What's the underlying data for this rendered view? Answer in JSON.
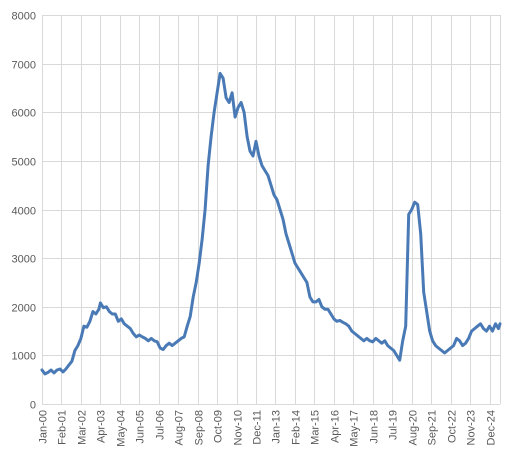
{
  "chart_data": {
    "type": "line",
    "title": "",
    "xlabel": "",
    "ylabel": "",
    "ylim": [
      0,
      8000
    ],
    "yticks": [
      0,
      1000,
      2000,
      3000,
      4000,
      5000,
      6000,
      7000,
      8000
    ],
    "x_range": [
      "2000-01",
      "2025-07"
    ],
    "grid": "on",
    "legend": "none",
    "colors": {
      "series": "#4a7ab6",
      "grid": "#d9d9d9",
      "text": "#595959"
    },
    "xtick_labels": [
      "Jan-00",
      "Feb-01",
      "Mar-02",
      "Apr-03",
      "May-04",
      "Jun-05",
      "Jul-06",
      "Aug-07",
      "Sep-08",
      "Oct-09",
      "Nov-10",
      "Dec-11",
      "Jan-13",
      "Feb-14",
      "Mar-15",
      "Apr-16",
      "May-17",
      "Jun-18",
      "Jul-19",
      "Aug-20",
      "Sep-21",
      "Oct-22",
      "Nov-23",
      "Dec-24"
    ],
    "series": [
      {
        "points": [
          [
            "2000-01",
            700
          ],
          [
            "2000-03",
            620
          ],
          [
            "2000-05",
            650
          ],
          [
            "2000-07",
            700
          ],
          [
            "2000-09",
            640
          ],
          [
            "2000-11",
            700
          ],
          [
            "2001-01",
            720
          ],
          [
            "2001-03",
            660
          ],
          [
            "2001-05",
            720
          ],
          [
            "2001-07",
            800
          ],
          [
            "2001-09",
            880
          ],
          [
            "2001-11",
            1100
          ],
          [
            "2002-01",
            1200
          ],
          [
            "2002-03",
            1350
          ],
          [
            "2002-05",
            1600
          ],
          [
            "2002-07",
            1580
          ],
          [
            "2002-09",
            1700
          ],
          [
            "2002-11",
            1900
          ],
          [
            "2003-01",
            1850
          ],
          [
            "2003-03",
            1950
          ],
          [
            "2003-04",
            2080
          ],
          [
            "2003-06",
            1980
          ],
          [
            "2003-08",
            2000
          ],
          [
            "2003-10",
            1900
          ],
          [
            "2003-12",
            1850
          ],
          [
            "2004-02",
            1850
          ],
          [
            "2004-04",
            1700
          ],
          [
            "2004-06",
            1750
          ],
          [
            "2004-08",
            1650
          ],
          [
            "2004-10",
            1600
          ],
          [
            "2004-12",
            1550
          ],
          [
            "2005-02",
            1450
          ],
          [
            "2005-04",
            1380
          ],
          [
            "2005-06",
            1420
          ],
          [
            "2005-08",
            1380
          ],
          [
            "2005-10",
            1350
          ],
          [
            "2005-12",
            1300
          ],
          [
            "2006-02",
            1350
          ],
          [
            "2006-04",
            1300
          ],
          [
            "2006-06",
            1280
          ],
          [
            "2006-08",
            1150
          ],
          [
            "2006-10",
            1120
          ],
          [
            "2006-12",
            1200
          ],
          [
            "2007-02",
            1250
          ],
          [
            "2007-04",
            1200
          ],
          [
            "2007-06",
            1250
          ],
          [
            "2007-08",
            1300
          ],
          [
            "2007-10",
            1350
          ],
          [
            "2007-12",
            1380
          ],
          [
            "2008-02",
            1600
          ],
          [
            "2008-04",
            1800
          ],
          [
            "2008-06",
            2200
          ],
          [
            "2008-08",
            2500
          ],
          [
            "2008-10",
            2900
          ],
          [
            "2008-12",
            3400
          ],
          [
            "2009-02",
            4000
          ],
          [
            "2009-04",
            4900
          ],
          [
            "2009-06",
            5500
          ],
          [
            "2009-08",
            6000
          ],
          [
            "2009-10",
            6400
          ],
          [
            "2009-12",
            6800
          ],
          [
            "2010-02",
            6700
          ],
          [
            "2010-04",
            6300
          ],
          [
            "2010-06",
            6200
          ],
          [
            "2010-08",
            6400
          ],
          [
            "2010-10",
            5900
          ],
          [
            "2010-12",
            6100
          ],
          [
            "2011-02",
            6200
          ],
          [
            "2011-04",
            6000
          ],
          [
            "2011-06",
            5500
          ],
          [
            "2011-08",
            5200
          ],
          [
            "2011-10",
            5100
          ],
          [
            "2011-12",
            5400
          ],
          [
            "2012-02",
            5100
          ],
          [
            "2012-04",
            4900
          ],
          [
            "2012-06",
            4800
          ],
          [
            "2012-08",
            4700
          ],
          [
            "2012-10",
            4500
          ],
          [
            "2012-12",
            4300
          ],
          [
            "2013-02",
            4200
          ],
          [
            "2013-04",
            4000
          ],
          [
            "2013-06",
            3800
          ],
          [
            "2013-08",
            3500
          ],
          [
            "2013-10",
            3300
          ],
          [
            "2013-12",
            3100
          ],
          [
            "2014-02",
            2900
          ],
          [
            "2014-04",
            2800
          ],
          [
            "2014-06",
            2700
          ],
          [
            "2014-08",
            2600
          ],
          [
            "2014-10",
            2500
          ],
          [
            "2014-12",
            2200
          ],
          [
            "2015-02",
            2100
          ],
          [
            "2015-04",
            2100
          ],
          [
            "2015-06",
            2150
          ],
          [
            "2015-08",
            2000
          ],
          [
            "2015-10",
            1950
          ],
          [
            "2015-12",
            1950
          ],
          [
            "2016-02",
            1850
          ],
          [
            "2016-04",
            1750
          ],
          [
            "2016-06",
            1700
          ],
          [
            "2016-08",
            1720
          ],
          [
            "2016-10",
            1680
          ],
          [
            "2016-12",
            1650
          ],
          [
            "2017-02",
            1600
          ],
          [
            "2017-04",
            1500
          ],
          [
            "2017-06",
            1450
          ],
          [
            "2017-08",
            1400
          ],
          [
            "2017-10",
            1350
          ],
          [
            "2017-12",
            1300
          ],
          [
            "2018-02",
            1350
          ],
          [
            "2018-04",
            1300
          ],
          [
            "2018-06",
            1280
          ],
          [
            "2018-08",
            1350
          ],
          [
            "2018-10",
            1300
          ],
          [
            "2018-12",
            1250
          ],
          [
            "2019-02",
            1300
          ],
          [
            "2019-04",
            1200
          ],
          [
            "2019-06",
            1150
          ],
          [
            "2019-08",
            1100
          ],
          [
            "2019-10",
            1000
          ],
          [
            "2019-12",
            900
          ],
          [
            "2020-02",
            1300
          ],
          [
            "2020-04",
            1600
          ],
          [
            "2020-06",
            3900
          ],
          [
            "2020-08",
            4000
          ],
          [
            "2020-10",
            4150
          ],
          [
            "2020-12",
            4100
          ],
          [
            "2021-02",
            3500
          ],
          [
            "2021-04",
            2300
          ],
          [
            "2021-06",
            1900
          ],
          [
            "2021-08",
            1500
          ],
          [
            "2021-10",
            1300
          ],
          [
            "2021-12",
            1200
          ],
          [
            "2022-02",
            1150
          ],
          [
            "2022-04",
            1100
          ],
          [
            "2022-06",
            1050
          ],
          [
            "2022-08",
            1100
          ],
          [
            "2022-10",
            1150
          ],
          [
            "2022-12",
            1200
          ],
          [
            "2023-02",
            1350
          ],
          [
            "2023-04",
            1300
          ],
          [
            "2023-06",
            1200
          ],
          [
            "2023-08",
            1250
          ],
          [
            "2023-10",
            1350
          ],
          [
            "2023-12",
            1500
          ],
          [
            "2024-02",
            1550
          ],
          [
            "2024-04",
            1600
          ],
          [
            "2024-06",
            1650
          ],
          [
            "2024-08",
            1550
          ],
          [
            "2024-10",
            1500
          ],
          [
            "2024-12",
            1600
          ],
          [
            "2025-02",
            1500
          ],
          [
            "2025-04",
            1650
          ],
          [
            "2025-06",
            1550
          ],
          [
            "2025-07",
            1650
          ]
        ]
      }
    ]
  }
}
